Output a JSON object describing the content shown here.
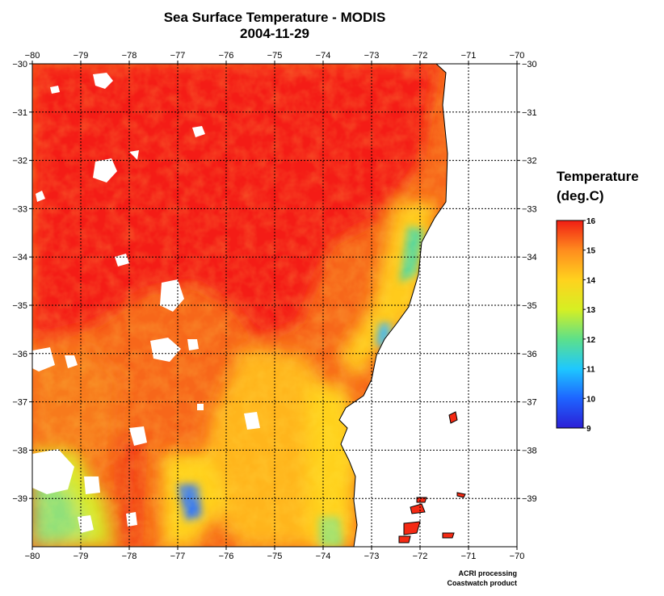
{
  "title": "Sea Surface Temperature - MODIS",
  "date": "2004-11-29",
  "colorbar": {
    "title_line1": "Temperature",
    "title_line2": "(deg.C)",
    "min": 9,
    "max": 16,
    "ticks": [
      "9",
      "10",
      "11",
      "12",
      "13",
      "14",
      "15",
      "16"
    ],
    "colors": [
      "#2b1fd6",
      "#1e64ff",
      "#1ec8ff",
      "#5de08a",
      "#d6ef23",
      "#ffd21e",
      "#ff8c1e",
      "#f01e14"
    ]
  },
  "axes": {
    "lon_ticks": [
      "−80",
      "−79",
      "−78",
      "−77",
      "−76",
      "−75",
      "−74",
      "−73",
      "−72",
      "−71",
      "−70"
    ],
    "lat_ticks": [
      "−30",
      "−31",
      "−32",
      "−33",
      "−34",
      "−35",
      "−36",
      "−37",
      "−38",
      "−39"
    ],
    "lon_range": [
      -80,
      -70
    ],
    "lat_range": [
      -40,
      -30
    ],
    "grid": true
  },
  "credits": {
    "line1": "ACRI processing",
    "line2": "Coastwatch product"
  }
}
